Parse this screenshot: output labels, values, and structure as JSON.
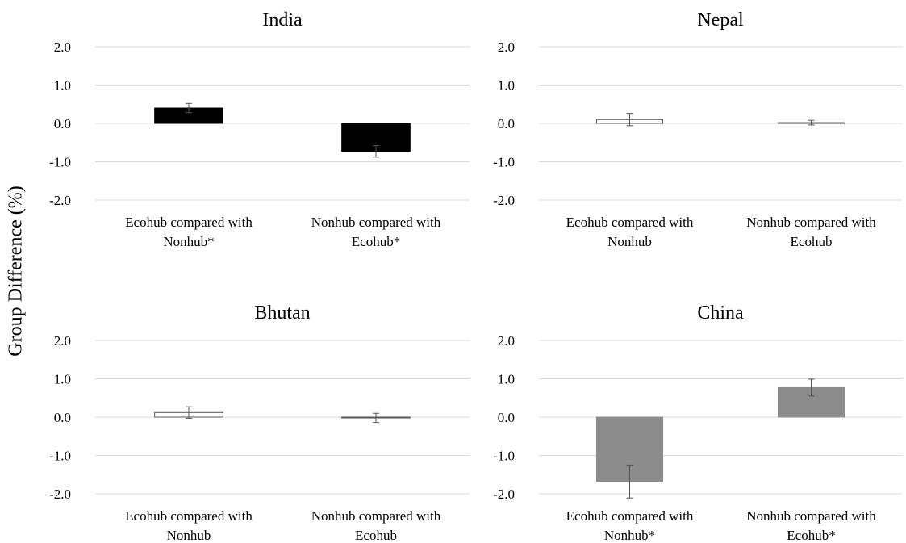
{
  "figure": {
    "ylabel": "Group Difference (%)"
  },
  "chart_data": [
    {
      "type": "bar",
      "title": "India",
      "categories": [
        "Ecohub compared with\nNonhub*",
        "Nonhub compared with\nEcohub*"
      ],
      "values": [
        0.4,
        -0.73
      ],
      "errors": [
        0.12,
        0.15
      ],
      "bar_fill": "#000000",
      "bar_stroke": "#000000",
      "ylim": [
        -2.0,
        2.0
      ],
      "yticks": [
        "2.0",
        "1.0",
        "0.0",
        "-1.0",
        "-2.0"
      ],
      "grid": true
    },
    {
      "type": "bar",
      "title": "Nepal",
      "categories": [
        "Ecohub compared with\nNonhub",
        "Nonhub compared with\nEcohub"
      ],
      "values": [
        0.1,
        0.02
      ],
      "errors": [
        0.16,
        0.06
      ],
      "bar_fill": "#ffffff",
      "bar_stroke": "#555555",
      "ylim": [
        -2.0,
        2.0
      ],
      "yticks": [
        "2.0",
        "1.0",
        "0.0",
        "-1.0",
        "-2.0"
      ],
      "grid": true
    },
    {
      "type": "bar",
      "title": "Bhutan",
      "categories": [
        "Ecohub compared with\nNonhub",
        "Nonhub compared with\nEcohub"
      ],
      "values": [
        0.12,
        -0.02
      ],
      "errors": [
        0.15,
        0.12
      ],
      "bar_fill": "#ffffff",
      "bar_stroke": "#555555",
      "ylim": [
        -2.0,
        2.0
      ],
      "yticks": [
        "2.0",
        "1.0",
        "0.0",
        "-1.0",
        "-2.0"
      ],
      "grid": true
    },
    {
      "type": "bar",
      "title": "China",
      "categories": [
        "Ecohub compared with\nNonhub*",
        "Nonhub compared with\nEcohub*"
      ],
      "values": [
        -1.68,
        0.77
      ],
      "errors": [
        0.43,
        0.22
      ],
      "bar_fill": "#8c8c8c",
      "bar_stroke": "#8c8c8c",
      "ylim": [
        -2.0,
        2.0
      ],
      "yticks": [
        "2.0",
        "1.0",
        "0.0",
        "-1.0",
        "-2.0"
      ],
      "grid": true
    }
  ]
}
